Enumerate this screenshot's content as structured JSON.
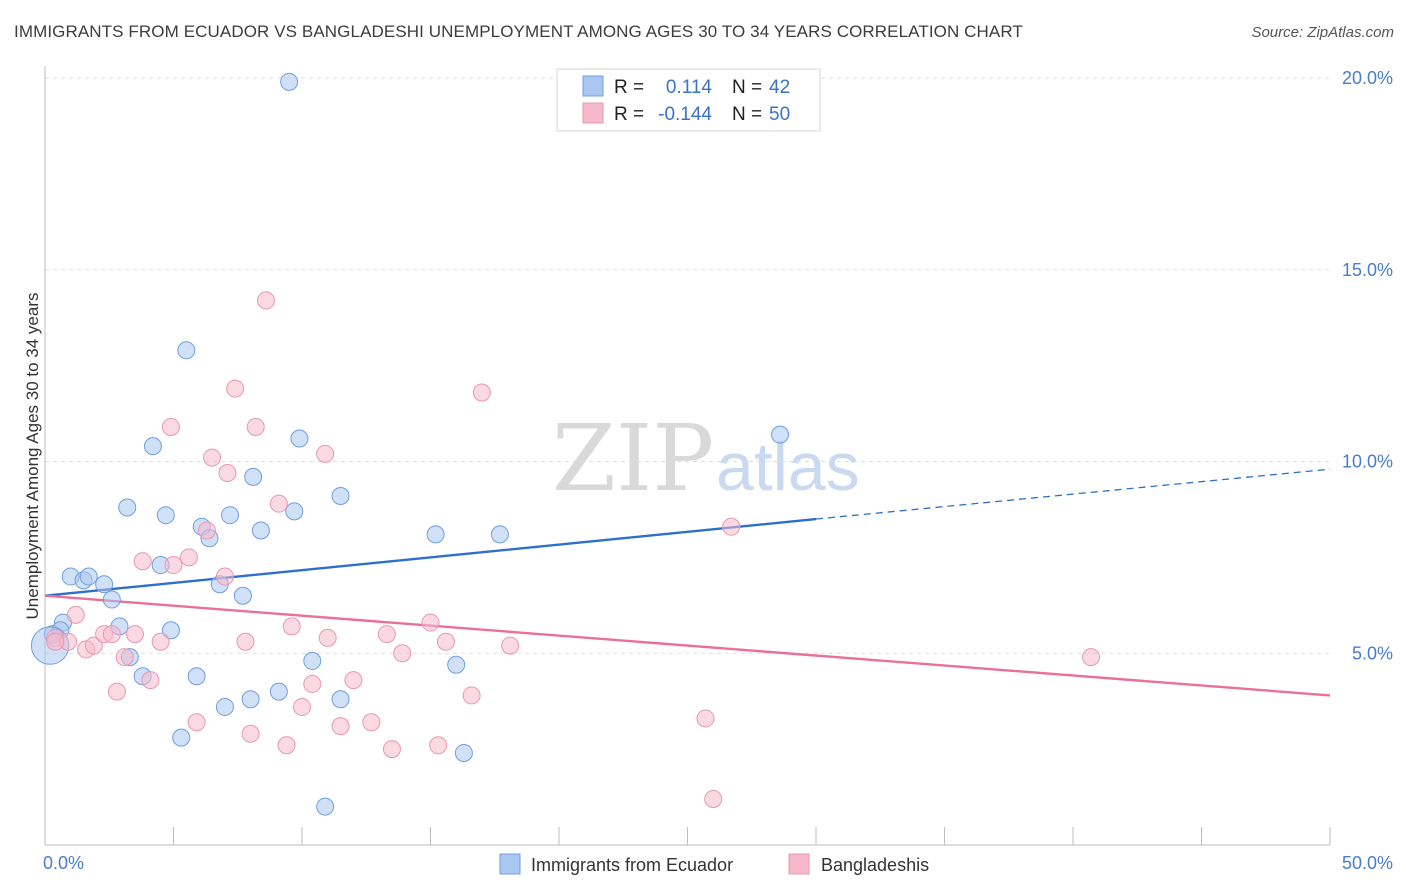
{
  "header": {
    "title": "IMMIGRANTS FROM ECUADOR VS BANGLADESHI UNEMPLOYMENT AMONG AGES 30 TO 34 YEARS CORRELATION CHART",
    "source": "Source: ZipAtlas.com"
  },
  "watermark": {
    "zip": "ZIP",
    "atlas": "atlas"
  },
  "legend": {
    "rows": [
      {
        "r_label": "R =",
        "r_value": "0.114",
        "n_label": "N =",
        "n_value": "42",
        "color": "#a9c7f0"
      },
      {
        "r_label": "R =",
        "r_value": "-0.144",
        "n_label": "N =",
        "n_value": "50",
        "color": "#f6b9cc"
      }
    ]
  },
  "bottom_legend": {
    "items": [
      {
        "label": "Immigrants from Ecuador",
        "color": "#a9c7f0"
      },
      {
        "label": "Bangladeshis",
        "color": "#f6b9cc"
      }
    ]
  },
  "chart_data": {
    "type": "scatter",
    "title": "IMMIGRANTS FROM ECUADOR VS BANGLADESHI UNEMPLOYMENT AMONG AGES 30 TO 34 YEARS CORRELATION CHART",
    "xlabel": "",
    "ylabel": "Unemployment Among Ages 30 to 34 years",
    "xlim": [
      0,
      50
    ],
    "ylim": [
      0,
      20
    ],
    "x_ticks": [
      "0.0%",
      "50.0%"
    ],
    "y_ticks": [
      {
        "value": 5,
        "label": "5.0%"
      },
      {
        "value": 10,
        "label": "10.0%"
      },
      {
        "value": 15,
        "label": "15.0%"
      },
      {
        "value": 20,
        "label": "20.0%"
      }
    ],
    "grid": "horizontal dashed",
    "legend_position": "top-center",
    "series": [
      {
        "name": "Immigrants from Ecuador",
        "color": "#a9c7f0",
        "stroke": "#6f9fe0",
        "trend_color": "#2e6fcc",
        "trend": {
          "x0": 0,
          "y0": 6.5,
          "x1": 30,
          "y1": 8.5,
          "dashed_to_x": 50,
          "dashed_to_y": 9.8
        },
        "points": [
          [
            0.3,
            5.5,
            1
          ],
          [
            0.7,
            5.8,
            1
          ],
          [
            0.6,
            5.6,
            1
          ],
          [
            1.0,
            7.0,
            1
          ],
          [
            1.5,
            6.9,
            1
          ],
          [
            1.7,
            7.0,
            1
          ],
          [
            2.3,
            6.8,
            1
          ],
          [
            2.6,
            6.4,
            1
          ],
          [
            2.9,
            5.7,
            1
          ],
          [
            3.3,
            4.9,
            1
          ],
          [
            3.8,
            4.4,
            1
          ],
          [
            4.2,
            10.4,
            1
          ],
          [
            3.2,
            8.8,
            1
          ],
          [
            4.5,
            7.3,
            1
          ],
          [
            4.7,
            8.6,
            1
          ],
          [
            4.9,
            5.6,
            1
          ],
          [
            5.3,
            2.8,
            1
          ],
          [
            5.5,
            12.9,
            1
          ],
          [
            5.9,
            4.4,
            1
          ],
          [
            6.1,
            8.3,
            1
          ],
          [
            6.4,
            8.0,
            1
          ],
          [
            6.8,
            6.8,
            1
          ],
          [
            7.0,
            3.6,
            1
          ],
          [
            7.2,
            8.6,
            1
          ],
          [
            7.7,
            6.5,
            1
          ],
          [
            8.0,
            3.8,
            1
          ],
          [
            8.1,
            9.6,
            1
          ],
          [
            8.4,
            8.2,
            1
          ],
          [
            9.1,
            4.0,
            1
          ],
          [
            9.5,
            19.9,
            1
          ],
          [
            9.7,
            8.7,
            1
          ],
          [
            9.9,
            10.6,
            1
          ],
          [
            10.4,
            4.8,
            1
          ],
          [
            10.9,
            1.0,
            1
          ],
          [
            11.5,
            3.8,
            1
          ],
          [
            11.5,
            9.1,
            1
          ],
          [
            15.2,
            8.1,
            1
          ],
          [
            16.0,
            4.7,
            1
          ],
          [
            16.3,
            2.4,
            1
          ],
          [
            17.7,
            8.1,
            1
          ],
          [
            28.6,
            10.7,
            1
          ],
          [
            0.2,
            5.2,
            2.2
          ]
        ]
      },
      {
        "name": "Bangladeshis",
        "color": "#f6b9cc",
        "stroke": "#e898b1",
        "trend_color": "#e8709a",
        "trend": {
          "x0": 0,
          "y0": 6.5,
          "x1": 50,
          "y1": 3.9
        },
        "points": [
          [
            0.4,
            5.4,
            1
          ],
          [
            0.9,
            5.3,
            1
          ],
          [
            1.2,
            6.0,
            1
          ],
          [
            1.6,
            5.1,
            1
          ],
          [
            1.9,
            5.2,
            1
          ],
          [
            2.3,
            5.5,
            1
          ],
          [
            2.6,
            5.5,
            1
          ],
          [
            2.8,
            4.0,
            1
          ],
          [
            3.1,
            4.9,
            1
          ],
          [
            3.5,
            5.5,
            1
          ],
          [
            3.8,
            7.4,
            1
          ],
          [
            4.1,
            4.3,
            1
          ],
          [
            4.5,
            5.3,
            1
          ],
          [
            4.9,
            10.9,
            1
          ],
          [
            5.0,
            7.3,
            1
          ],
          [
            5.6,
            7.5,
            1
          ],
          [
            5.9,
            3.2,
            1
          ],
          [
            6.3,
            8.2,
            1
          ],
          [
            6.5,
            10.1,
            1
          ],
          [
            7.0,
            7.0,
            1
          ],
          [
            7.1,
            9.7,
            1
          ],
          [
            7.4,
            11.9,
            1
          ],
          [
            7.8,
            5.3,
            1
          ],
          [
            8.0,
            2.9,
            1
          ],
          [
            8.2,
            10.9,
            1
          ],
          [
            8.6,
            14.2,
            1
          ],
          [
            9.1,
            8.9,
            1
          ],
          [
            9.4,
            2.6,
            1
          ],
          [
            9.6,
            5.7,
            1
          ],
          [
            10.0,
            3.6,
            1
          ],
          [
            10.4,
            4.2,
            1
          ],
          [
            10.9,
            10.2,
            1
          ],
          [
            11.0,
            5.4,
            1
          ],
          [
            11.5,
            3.1,
            1
          ],
          [
            12.0,
            4.3,
            1
          ],
          [
            12.7,
            3.2,
            1
          ],
          [
            13.3,
            5.5,
            1
          ],
          [
            13.5,
            2.5,
            1
          ],
          [
            13.9,
            5.0,
            1
          ],
          [
            15.0,
            5.8,
            1
          ],
          [
            15.3,
            2.6,
            1
          ],
          [
            15.6,
            5.3,
            1
          ],
          [
            16.6,
            3.9,
            1
          ],
          [
            17.0,
            11.8,
            1
          ],
          [
            18.1,
            5.2,
            1
          ],
          [
            25.7,
            3.3,
            1
          ],
          [
            26.0,
            1.2,
            1
          ],
          [
            26.7,
            8.3,
            1
          ],
          [
            40.7,
            4.9,
            1
          ],
          [
            0.4,
            5.3,
            1
          ]
        ]
      }
    ]
  }
}
